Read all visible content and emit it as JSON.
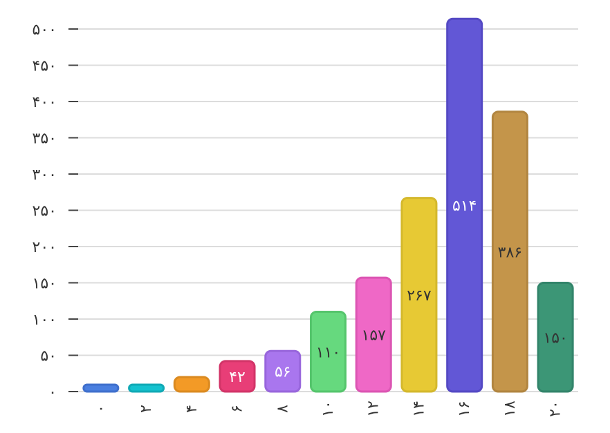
{
  "chart_data": {
    "type": "bar",
    "categories": [
      "۰",
      "۲",
      "۴",
      "۶",
      "۸",
      "۱۰",
      "۱۲",
      "۱۴",
      "۱۶",
      "۱۸",
      "۲۰"
    ],
    "values": [
      6,
      6,
      20,
      42,
      56,
      110,
      157,
      267,
      514,
      386,
      150
    ],
    "data_labels": [
      "",
      "",
      "",
      "۴۲",
      "۵۶",
      "۱۱۰",
      "۱۵۷",
      "۲۶۷",
      "۵۱۴",
      "۳۸۶",
      "۱۵۰"
    ],
    "colors": [
      "#4a7fe0",
      "#14c2cf",
      "#f39a26",
      "#e83e77",
      "#a976ee",
      "#66d97e",
      "#ef68c6",
      "#e7c934",
      "#6257d6",
      "#c4954a",
      "#3c9676"
    ],
    "border_colors": [
      "#3f6fcc",
      "#10a9b5",
      "#db8a20",
      "#d23468",
      "#9866dc",
      "#55c56c",
      "#dc55b3",
      "#d4b82c",
      "#5449c4",
      "#b18540",
      "#32846a"
    ],
    "label_colors": [
      "#ffffff",
      "#ffffff",
      "#ffffff",
      "#ffffff",
      "#ffffff",
      "#333333",
      "#333333",
      "#333333",
      "#ffffff",
      "#333333",
      "#333333"
    ],
    "yticks": [
      0,
      50,
      100,
      150,
      200,
      250,
      300,
      350,
      400,
      450,
      500
    ],
    "ytick_labels": [
      "۰",
      "۵۰",
      "۱۰۰",
      "۱۵۰",
      "۲۰۰",
      "۲۵۰",
      "۳۰۰",
      "۳۵۰",
      "۴۰۰",
      "۴۵۰",
      "۵۰۰"
    ],
    "ylim": [
      0,
      514
    ],
    "grid": true,
    "title": "",
    "xlabel": "",
    "ylabel": ""
  }
}
